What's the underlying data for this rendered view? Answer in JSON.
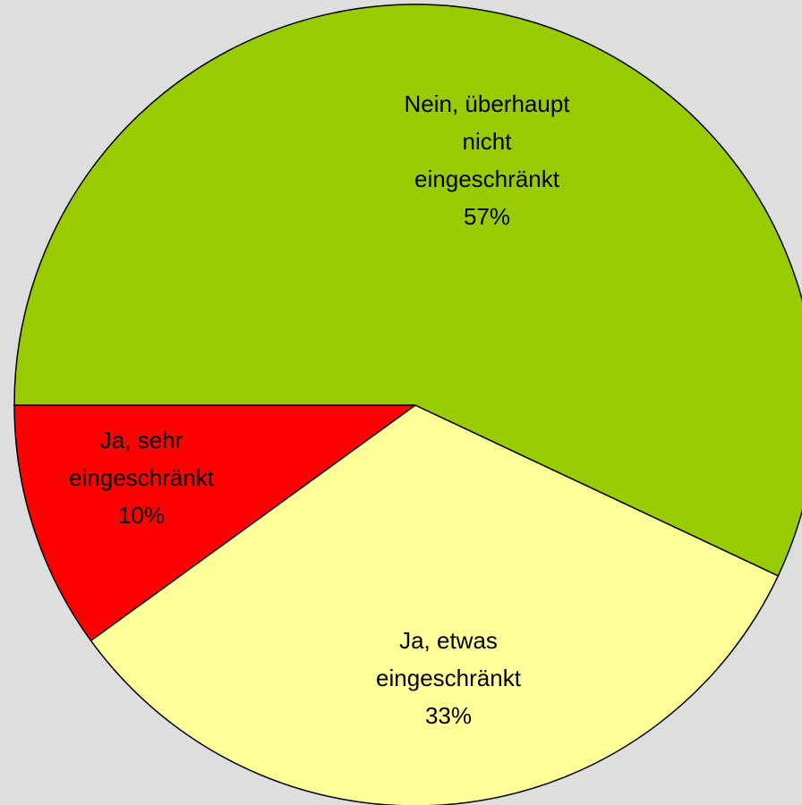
{
  "chart_data": {
    "type": "pie",
    "categories": [
      "Ja, sehr eingeschränkt",
      "Ja, etwas eingeschränkt",
      "Nein, überhaupt nicht eingeschränkt"
    ],
    "values": [
      10,
      33,
      57
    ],
    "value_labels": [
      "10%",
      "33%",
      "57%"
    ],
    "colors": [
      "#ff0000",
      "#ffff99",
      "#99cc00"
    ]
  }
}
